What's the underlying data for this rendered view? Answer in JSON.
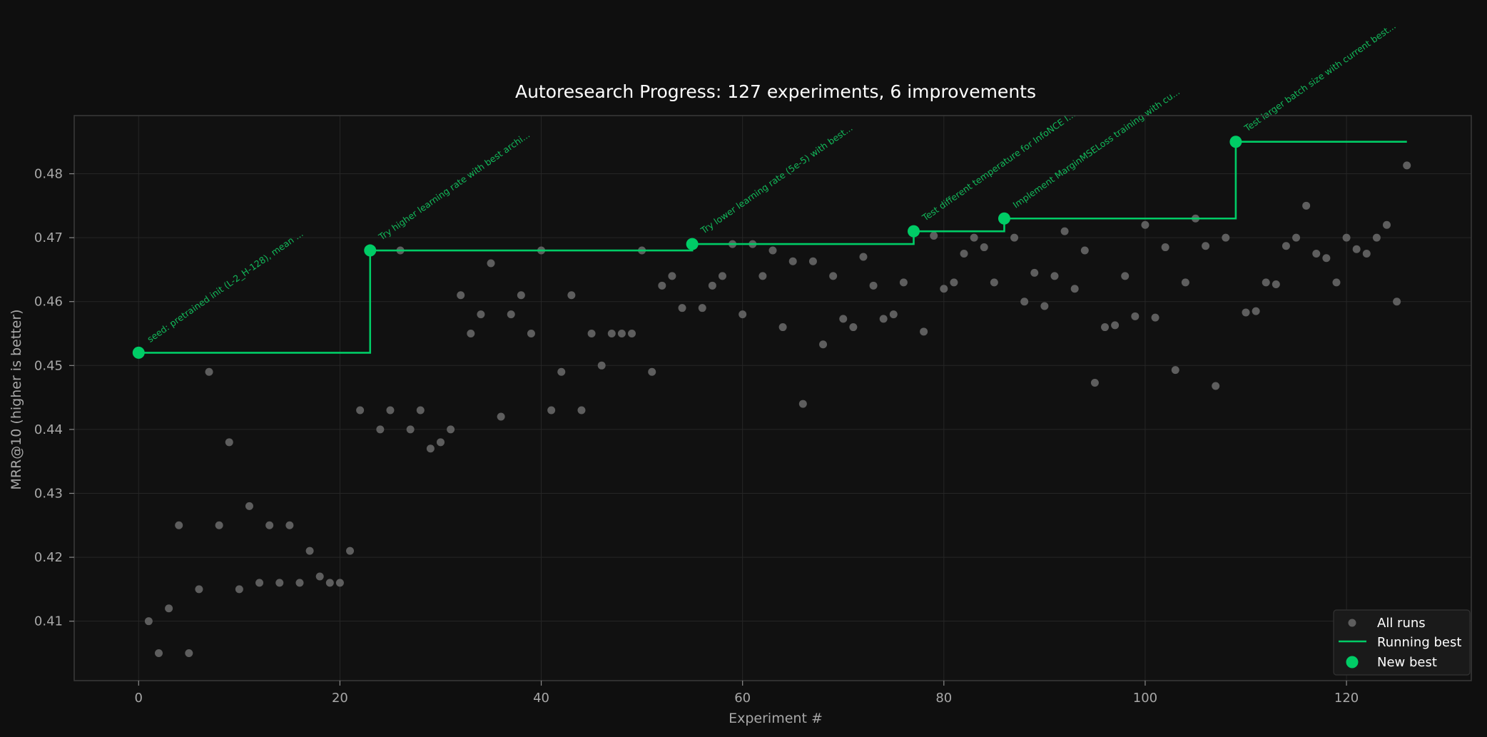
{
  "chart_data": {
    "type": "scatter",
    "title": "Autoresearch Progress: 127 experiments, 6 improvements",
    "xlabel": "Experiment #",
    "ylabel": "MRR@10 (higher is better)",
    "xlim": [
      -6.4,
      132.4
    ],
    "ylim": [
      0.4007,
      0.4891
    ],
    "xticks": [
      0,
      20,
      40,
      60,
      80,
      100,
      120
    ],
    "yticks": [
      0.41,
      0.42,
      0.43,
      0.44,
      0.45,
      0.46,
      0.47,
      0.48
    ],
    "ytick_labels": [
      "0.41",
      "0.42",
      "0.43",
      "0.44",
      "0.45",
      "0.46",
      "0.47",
      "0.48"
    ],
    "grid": true,
    "legend_position": "lower right",
    "legend": [
      "All runs",
      "Running best",
      "New best"
    ],
    "colors": {
      "background": "#0f0f0f",
      "all_runs": "#5e5e5e",
      "running_best": "#00cc66",
      "new_best": "#00cc66",
      "annotation": "#12b85a",
      "grid": "#262626",
      "spine": "#3a3a3a"
    },
    "series": [
      {
        "name": "All runs",
        "x": [
          0,
          1,
          2,
          3,
          4,
          5,
          6,
          7,
          8,
          9,
          10,
          11,
          12,
          13,
          14,
          15,
          16,
          17,
          18,
          19,
          20,
          21,
          22,
          23,
          24,
          25,
          26,
          27,
          28,
          29,
          30,
          31,
          32,
          33,
          34,
          35,
          36,
          37,
          38,
          39,
          40,
          41,
          42,
          43,
          44,
          45,
          46,
          47,
          48,
          49,
          50,
          51,
          52,
          53,
          54,
          55,
          56,
          57,
          58,
          59,
          60,
          61,
          62,
          63,
          64,
          65,
          66,
          67,
          68,
          69,
          70,
          71,
          72,
          73,
          74,
          75,
          76,
          77,
          78,
          79,
          80,
          81,
          82,
          83,
          84,
          85,
          86,
          87,
          88,
          89,
          90,
          91,
          92,
          93,
          94,
          95,
          96,
          97,
          98,
          99,
          100,
          101,
          102,
          103,
          104,
          105,
          106,
          107,
          108,
          109,
          110,
          111,
          112,
          113,
          114,
          115,
          116,
          117,
          118,
          119,
          120,
          121,
          122,
          123,
          124,
          125,
          126
        ],
        "y": [
          0.452,
          0.41,
          0.405,
          0.412,
          0.425,
          0.405,
          0.415,
          0.449,
          0.425,
          0.438,
          0.415,
          0.428,
          0.416,
          0.425,
          0.416,
          0.425,
          0.416,
          0.421,
          0.417,
          0.416,
          0.416,
          0.421,
          0.443,
          0.468,
          0.44,
          0.443,
          0.468,
          0.44,
          0.443,
          0.437,
          0.438,
          0.44,
          0.461,
          0.455,
          0.458,
          0.466,
          0.442,
          0.458,
          0.461,
          0.455,
          0.468,
          0.443,
          0.449,
          0.461,
          0.443,
          0.455,
          0.45,
          0.455,
          0.455,
          0.455,
          0.468,
          0.449,
          0.4625,
          0.464,
          0.459,
          0.469,
          0.459,
          0.4625,
          0.464,
          0.469,
          0.458,
          0.469,
          0.464,
          0.468,
          0.456,
          0.4663,
          0.444,
          0.4663,
          0.4533,
          0.464,
          0.4573,
          0.456,
          0.467,
          0.4625,
          0.4573,
          0.458,
          0.463,
          0.471,
          0.4553,
          0.4703,
          0.462,
          0.463,
          0.4675,
          0.47,
          0.4685,
          0.463,
          0.473,
          0.47,
          0.46,
          0.4645,
          0.4593,
          0.464,
          0.471,
          0.462,
          0.468,
          0.4473,
          0.456,
          0.4563,
          0.464,
          0.4577,
          0.472,
          0.4575,
          0.4685,
          0.4493,
          0.463,
          0.473,
          0.4687,
          0.4468,
          0.47,
          0.485,
          0.4583,
          0.4585,
          0.463,
          0.4627,
          0.4687,
          0.47,
          0.475,
          0.4675,
          0.4668,
          0.463,
          0.47,
          0.4682,
          0.4675,
          0.47,
          0.472,
          0.46,
          0.4813
        ]
      },
      {
        "name": "Running best",
        "x": [
          0,
          23,
          55,
          77,
          86,
          109,
          126
        ],
        "y": [
          0.452,
          0.468,
          0.469,
          0.471,
          0.473,
          0.485,
          0.485
        ],
        "drawstyle": "steps-post"
      },
      {
        "name": "New best",
        "x": [
          0,
          23,
          55,
          77,
          86,
          109
        ],
        "y": [
          0.452,
          0.468,
          0.469,
          0.471,
          0.473,
          0.485
        ],
        "annotations": [
          "seed: pretrained init (L-2_H-128), mean ...",
          "Try higher learning rate with best archi...",
          "Try lower learning rate (5e-5) with best...",
          "Test different temperature for InfoNCE l...",
          "Implement MarginMSELoss training with cu...",
          "Test larger batch size with current best..."
        ]
      }
    ]
  }
}
